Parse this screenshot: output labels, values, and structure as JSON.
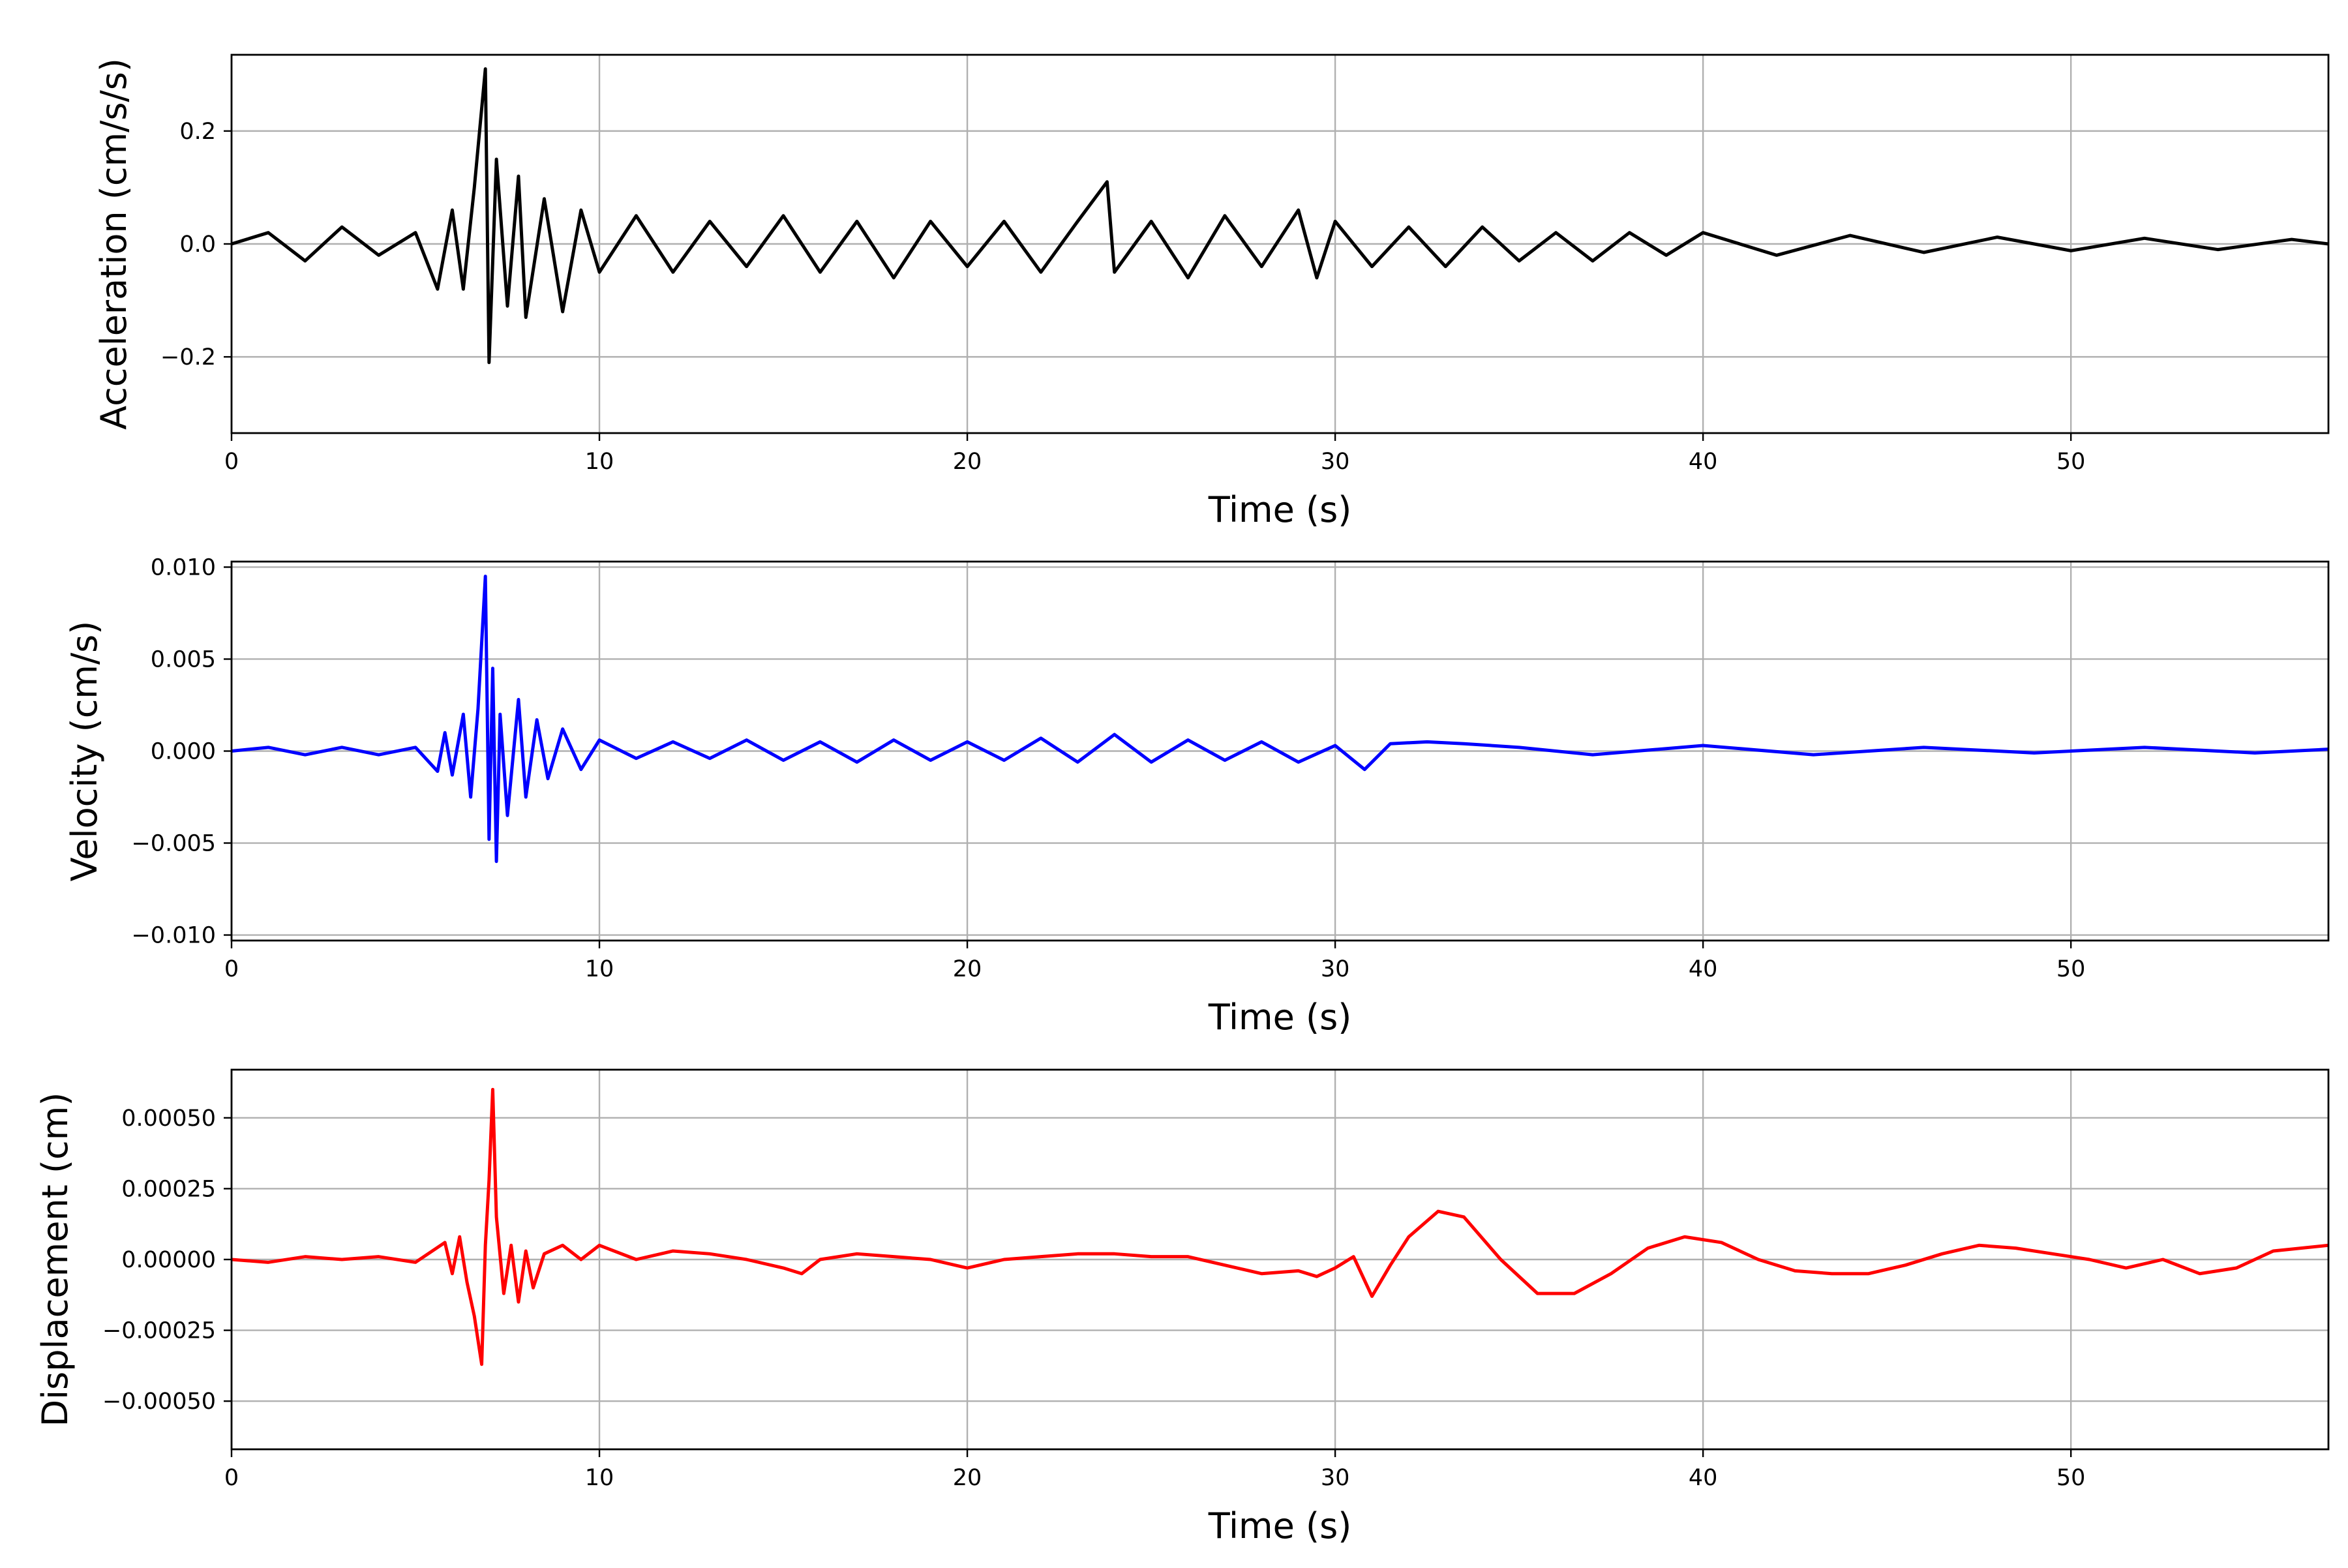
{
  "chart_data": [
    {
      "type": "line",
      "title": "",
      "xlabel": "Time (s)",
      "ylabel": "Acceleration (cm/s/s)",
      "xlim": [
        0,
        57
      ],
      "ylim": [
        -0.335,
        0.335
      ],
      "xticks": [
        0,
        10,
        20,
        30,
        40,
        50
      ],
      "xtick_labels": [
        "0",
        "10",
        "20",
        "30",
        "40",
        "50"
      ],
      "yticks": [
        0.2,
        0.0,
        -0.2
      ],
      "ytick_labels": [
        "0.2",
        "0.0",
        "−0.2"
      ],
      "grid": true,
      "series": [
        {
          "color": "#000000",
          "x": [
            0,
            1,
            2,
            3,
            4,
            5,
            5.6,
            6.0,
            6.3,
            6.6,
            6.9,
            7.0,
            7.2,
            7.5,
            7.8,
            8.0,
            8.5,
            9.0,
            9.5,
            10,
            11,
            12,
            13,
            14,
            15,
            16,
            17,
            18,
            19,
            20,
            21,
            22,
            23,
            23.8,
            24,
            25,
            26,
            27,
            28,
            29,
            29.5,
            30,
            31,
            32,
            33,
            34,
            35,
            36,
            37,
            38,
            39,
            40,
            42,
            44,
            46,
            48,
            50,
            52,
            54,
            56,
            57
          ],
          "y": [
            0.0,
            0.02,
            -0.03,
            0.03,
            -0.02,
            0.02,
            -0.08,
            0.06,
            -0.08,
            0.1,
            0.31,
            -0.21,
            0.15,
            -0.11,
            0.12,
            -0.13,
            0.08,
            -0.12,
            0.06,
            -0.05,
            0.05,
            -0.05,
            0.04,
            -0.04,
            0.05,
            -0.05,
            0.04,
            -0.06,
            0.04,
            -0.04,
            0.04,
            -0.05,
            0.04,
            0.11,
            -0.05,
            0.04,
            -0.06,
            0.05,
            -0.04,
            0.06,
            -0.06,
            0.04,
            -0.04,
            0.03,
            -0.04,
            0.03,
            -0.03,
            0.02,
            -0.03,
            0.02,
            -0.02,
            0.02,
            -0.02,
            0.015,
            -0.015,
            0.012,
            -0.012,
            0.01,
            -0.01,
            0.008,
            0.0
          ]
        }
      ]
    },
    {
      "type": "line",
      "title": "",
      "xlabel": "Time (s)",
      "ylabel": "Velocity (cm/s)",
      "xlim": [
        0,
        57
      ],
      "ylim": [
        -0.0103,
        0.0103
      ],
      "xticks": [
        0,
        10,
        20,
        30,
        40,
        50
      ],
      "xtick_labels": [
        "0",
        "10",
        "20",
        "30",
        "40",
        "50"
      ],
      "yticks": [
        0.01,
        0.005,
        0.0,
        -0.005,
        -0.01
      ],
      "ytick_labels": [
        "0.010",
        "0.005",
        "0.000",
        "−0.005",
        "−0.010"
      ],
      "grid": true,
      "series": [
        {
          "color": "#0000ff",
          "x": [
            0,
            1,
            2,
            3,
            4,
            5,
            5.6,
            5.8,
            6.0,
            6.3,
            6.5,
            6.7,
            6.9,
            7.0,
            7.1,
            7.2,
            7.3,
            7.5,
            7.8,
            8.0,
            8.3,
            8.6,
            9.0,
            9.5,
            10,
            11,
            12,
            13,
            14,
            15,
            16,
            17,
            18,
            19,
            20,
            21,
            22,
            23,
            24,
            25,
            26,
            27,
            28,
            29,
            30,
            30.8,
            31.5,
            32.5,
            33.5,
            35,
            37,
            40,
            43,
            46,
            49,
            52,
            55,
            57
          ],
          "y": [
            0.0,
            0.0002,
            -0.0002,
            0.0002,
            -0.0002,
            0.0002,
            -0.0011,
            0.001,
            -0.0013,
            0.002,
            -0.0025,
            0.0023,
            0.0095,
            -0.0048,
            0.0045,
            -0.006,
            0.002,
            -0.0035,
            0.0028,
            -0.0025,
            0.0017,
            -0.0015,
            0.0012,
            -0.001,
            0.0006,
            -0.0004,
            0.0005,
            -0.0004,
            0.0006,
            -0.0005,
            0.0005,
            -0.0006,
            0.0006,
            -0.0005,
            0.0005,
            -0.0005,
            0.0007,
            -0.0006,
            0.0009,
            -0.0006,
            0.0006,
            -0.0005,
            0.0005,
            -0.0006,
            0.0003,
            -0.001,
            0.0004,
            0.0005,
            0.0004,
            0.0002,
            -0.0002,
            0.0003,
            -0.0002,
            0.0002,
            -0.0001,
            0.0002,
            -0.0001,
            0.0001
          ]
        }
      ]
    },
    {
      "type": "line",
      "title": "",
      "xlabel": "Time (s)",
      "ylabel": "Displacement (cm)",
      "xlim": [
        0,
        57
      ],
      "ylim": [
        -0.00067,
        0.00067
      ],
      "xticks": [
        0,
        10,
        20,
        30,
        40,
        50
      ],
      "xtick_labels": [
        "0",
        "10",
        "20",
        "30",
        "40",
        "50"
      ],
      "yticks": [
        0.0005,
        0.00025,
        0.0,
        -0.00025,
        -0.0005
      ],
      "ytick_labels": [
        "0.00050",
        "0.00025",
        "0.00000",
        "−0.00025",
        "−0.00050"
      ],
      "grid": true,
      "series": [
        {
          "color": "#ff0000",
          "x": [
            0,
            1,
            2,
            3,
            4,
            5,
            5.8,
            6.0,
            6.2,
            6.4,
            6.6,
            6.8,
            6.9,
            7.0,
            7.1,
            7.2,
            7.4,
            7.6,
            7.8,
            8.0,
            8.2,
            8.5,
            9.0,
            9.5,
            10,
            11,
            12,
            13,
            14,
            15,
            15.5,
            16,
            17,
            18,
            19,
            20,
            21,
            22,
            23,
            24,
            25,
            26,
            27,
            28,
            29,
            29.5,
            30,
            30.5,
            31,
            31.5,
            32,
            32.8,
            33.5,
            34.5,
            35.5,
            36.5,
            37.5,
            38.5,
            39.5,
            40.5,
            41.5,
            42.5,
            43.5,
            44.5,
            45.5,
            46.5,
            47.5,
            48.5,
            49.5,
            50.5,
            51.5,
            52.5,
            53.5,
            54.5,
            55.5,
            57
          ],
          "y": [
            0.0,
            -1e-05,
            1e-05,
            0.0,
            1e-05,
            -1e-05,
            6e-05,
            -5e-05,
            8e-05,
            -8e-05,
            -0.0002,
            -0.00037,
            5e-05,
            0.00028,
            0.0006,
            0.00015,
            -0.00012,
            5e-05,
            -0.00015,
            3e-05,
            -0.0001,
            2e-05,
            5e-05,
            0.0,
            5e-05,
            0.0,
            3e-05,
            2e-05,
            0.0,
            -3e-05,
            -5e-05,
            0.0,
            2e-05,
            1e-05,
            0.0,
            -3e-05,
            0.0,
            1e-05,
            2e-05,
            2e-05,
            1e-05,
            1e-05,
            -2e-05,
            -5e-05,
            -4e-05,
            -6e-05,
            -3e-05,
            1e-05,
            -0.00013,
            -2e-05,
            8e-05,
            0.00017,
            0.00015,
            0.0,
            -0.00012,
            -0.00012,
            -5e-05,
            4e-05,
            8e-05,
            6e-05,
            0.0,
            -4e-05,
            -5e-05,
            -5e-05,
            -2e-05,
            2e-05,
            5e-05,
            4e-05,
            2e-05,
            0.0,
            -3e-05,
            0.0,
            -5e-05,
            -3e-05,
            3e-05,
            5e-05
          ]
        }
      ]
    }
  ]
}
